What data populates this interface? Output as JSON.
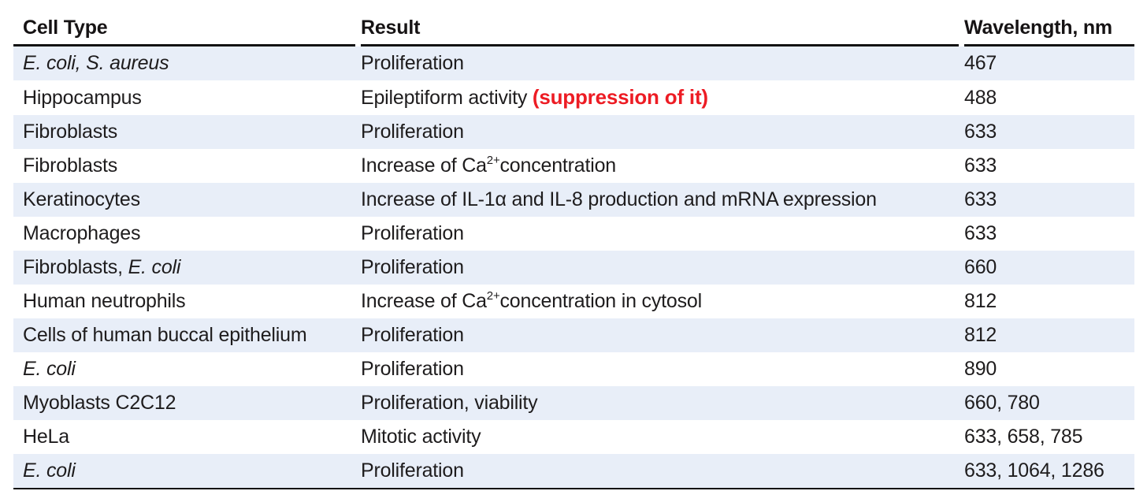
{
  "colors": {
    "stripe_blue": "#e8eef8",
    "annotation_red": "#ed1c24",
    "text": "#1e1c1d",
    "rule": "#121212"
  },
  "table": {
    "columns": [
      {
        "label": "Cell Type"
      },
      {
        "label": "Result"
      },
      {
        "label": "Wavelength, nm"
      }
    ],
    "rows": [
      {
        "cell_type": [
          {
            "t": "E. coli, S. aureus",
            "italic": true
          }
        ],
        "result": [
          {
            "t": "Proliferation"
          }
        ],
        "wavelength": "467"
      },
      {
        "cell_type": [
          {
            "t": "Hippocampus"
          }
        ],
        "result": [
          {
            "t": "Epileptiform activity "
          },
          {
            "t": "(suppression of it)",
            "red": true
          }
        ],
        "wavelength": "488"
      },
      {
        "cell_type": [
          {
            "t": "Fibroblasts"
          }
        ],
        "result": [
          {
            "t": "Proliferation"
          }
        ],
        "wavelength": "633"
      },
      {
        "cell_type": [
          {
            "t": "Fibroblasts"
          }
        ],
        "result": [
          {
            "t": "Increase of Ca"
          },
          {
            "t": "2+",
            "sup": true
          },
          {
            "t": "concentration"
          }
        ],
        "wavelength": "633"
      },
      {
        "cell_type": [
          {
            "t": "Keratinocytes"
          }
        ],
        "result": [
          {
            "t": "Increase of IL-1α and IL-8 production and mRNA expression"
          }
        ],
        "wavelength": "633"
      },
      {
        "cell_type": [
          {
            "t": "Macrophages"
          }
        ],
        "result": [
          {
            "t": "Proliferation"
          }
        ],
        "wavelength": "633"
      },
      {
        "cell_type": [
          {
            "t": "Fibroblasts, "
          },
          {
            "t": "E. coli",
            "italic": true
          }
        ],
        "result": [
          {
            "t": "Proliferation"
          }
        ],
        "wavelength": "660"
      },
      {
        "cell_type": [
          {
            "t": "Human neutrophils"
          }
        ],
        "result": [
          {
            "t": "Increase of Ca"
          },
          {
            "t": "2+",
            "sup": true
          },
          {
            "t": "concentration in cytosol"
          }
        ],
        "wavelength": "812"
      },
      {
        "cell_type": [
          {
            "t": "Cells of human buccal epithelium"
          }
        ],
        "result": [
          {
            "t": "Proliferation"
          }
        ],
        "wavelength": "812"
      },
      {
        "cell_type": [
          {
            "t": "E. coli",
            "italic": true
          }
        ],
        "result": [
          {
            "t": "Proliferation"
          }
        ],
        "wavelength": "890"
      },
      {
        "cell_type": [
          {
            "t": "Myoblasts C2C12"
          }
        ],
        "result": [
          {
            "t": "Proliferation, viability"
          }
        ],
        "wavelength": "660, 780"
      },
      {
        "cell_type": [
          {
            "t": "HeLa"
          }
        ],
        "result": [
          {
            "t": "Mitotic activity"
          }
        ],
        "wavelength": "633, 658, 785"
      },
      {
        "cell_type": [
          {
            "t": "E. coli",
            "italic": true
          }
        ],
        "result": [
          {
            "t": "Proliferation"
          }
        ],
        "wavelength": "633, 1064, 1286"
      }
    ]
  }
}
